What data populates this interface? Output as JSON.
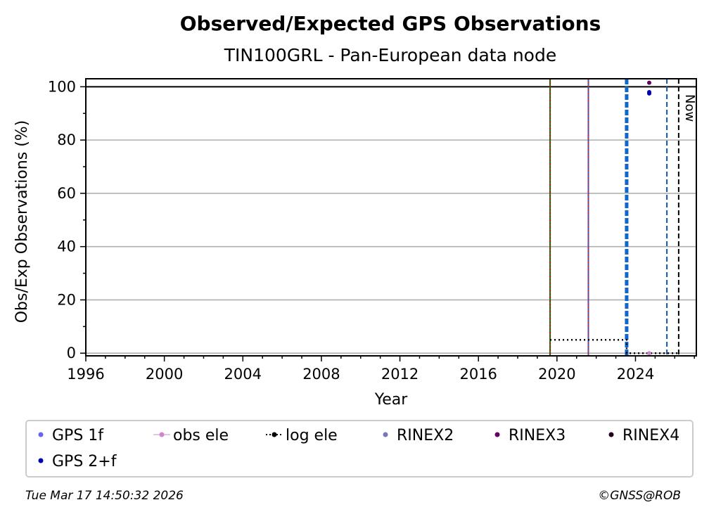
{
  "chart_data": {
    "type": "scatter",
    "title": "Observed/Expected GPS Observations",
    "subtitle": "TIN100GRL - Pan-European data node",
    "xlabel": "Year",
    "ylabel": "Obs/Exp Observations (%)",
    "xlim": [
      1996,
      2027.1
    ],
    "ylim": [
      -1,
      103
    ],
    "xticks": [
      1996,
      2000,
      2004,
      2008,
      2012,
      2016,
      2020,
      2024
    ],
    "yticks": [
      0,
      20,
      40,
      60,
      80,
      100
    ],
    "grid": "horizontal",
    "reference_line": 100,
    "now_label": "Now",
    "now_x": 2026.2,
    "legend_position": "bottom",
    "legend": [
      {
        "label": "GPS 1f",
        "marker": "dot",
        "color": "#6666ee"
      },
      {
        "label": "obs ele",
        "marker": "dot-line",
        "color": "#cc88cc"
      },
      {
        "label": "log ele",
        "marker": "dot-dotted",
        "color": "#000000"
      },
      {
        "label": "RINEX2",
        "marker": "dot",
        "color": "#7777bb"
      },
      {
        "label": "RINEX3",
        "marker": "dot",
        "color": "#660066"
      },
      {
        "label": "RINEX4",
        "marker": "dot",
        "color": "#220022"
      },
      {
        "label": "GPS 2+f",
        "marker": "dot",
        "color": "#0000aa"
      }
    ],
    "vertical_lines": [
      {
        "x": 2019.65,
        "color": "#007700",
        "style": "solid"
      },
      {
        "x": 2019.65,
        "color": "#cc0000",
        "style": "dotted"
      },
      {
        "x": 2021.6,
        "color": "#3355cc",
        "style": "solid"
      },
      {
        "x": 2021.6,
        "color": "#dd2222",
        "style": "dotted"
      },
      {
        "x": 2023.55,
        "color": "#1166cc",
        "style": "dashed-thick"
      },
      {
        "x": 2025.6,
        "color": "#1155aa",
        "style": "dashed"
      },
      {
        "x": 2026.2,
        "color": "#000000",
        "style": "dashed"
      }
    ],
    "series": [
      {
        "name": "log ele",
        "color": "#000000",
        "style": "dotted-step",
        "x": [
          2019.65,
          2023.55,
          2023.55,
          2026.2
        ],
        "y": [
          5,
          5,
          0,
          0
        ]
      },
      {
        "name": "RINEX3",
        "color": "#660066",
        "x": [
          2024.7
        ],
        "y": [
          101.5
        ]
      },
      {
        "name": "GPS 2+f",
        "color": "#0000aa",
        "x": [
          2024.7,
          2024.7
        ],
        "y": [
          98,
          97.5
        ]
      },
      {
        "name": "obs ele",
        "color": "#cc88cc",
        "x": [
          2024.7
        ],
        "y": [
          0
        ]
      }
    ]
  },
  "footer": {
    "timestamp": "Tue Mar 17 14:50:32 2026",
    "credit": "©GNSS@ROB"
  }
}
